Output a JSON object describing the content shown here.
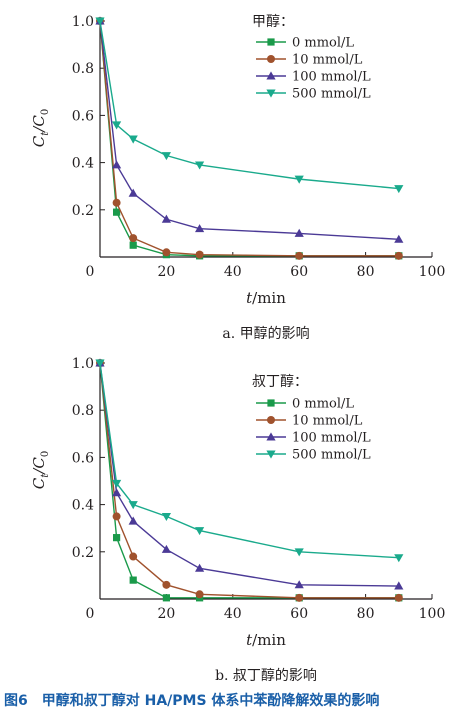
{
  "figure_caption": "图6　甲醇和叔丁醇对 HA/PMS 体系中苯酚降解效果的影响",
  "chart_data": [
    {
      "type": "line",
      "subcaption": "a. 甲醇的影响",
      "xlabel": "t/min",
      "ylabel": "Ct/C0",
      "xlim": [
        0,
        100
      ],
      "ylim": [
        0,
        1.0
      ],
      "xticks": [
        0,
        20,
        40,
        60,
        80,
        100
      ],
      "yticks": [
        0,
        0.2,
        0.4,
        0.6,
        0.8,
        1.0
      ],
      "ytick_labels": [
        "0",
        "0.2",
        "0.4",
        "0.6",
        "0.8",
        "1.0"
      ],
      "legend_title": "甲醇：",
      "legend_position": "top-right",
      "grid": false,
      "series": [
        {
          "name": "0 mmol/L",
          "marker": "square",
          "color": "#1a9a4a",
          "x": [
            0,
            5,
            10,
            20,
            30,
            60,
            90
          ],
          "y": [
            1.0,
            0.19,
            0.05,
            0.01,
            0.005,
            0.005,
            0.005
          ]
        },
        {
          "name": "10 mmol/L",
          "marker": "circle",
          "color": "#a0522d",
          "x": [
            0,
            5,
            10,
            20,
            30,
            60,
            90
          ],
          "y": [
            1.0,
            0.23,
            0.08,
            0.02,
            0.01,
            0.005,
            0.005
          ]
        },
        {
          "name": "100 mmol/L",
          "marker": "triangle-up",
          "color": "#4b3a96",
          "x": [
            0,
            5,
            10,
            20,
            30,
            60,
            90
          ],
          "y": [
            1.0,
            0.39,
            0.27,
            0.16,
            0.12,
            0.1,
            0.075
          ]
        },
        {
          "name": "500 mmol/L",
          "marker": "triangle-down",
          "color": "#1aaa8c",
          "x": [
            0,
            5,
            10,
            20,
            30,
            60,
            90
          ],
          "y": [
            1.0,
            0.56,
            0.5,
            0.43,
            0.39,
            0.33,
            0.29
          ]
        }
      ]
    },
    {
      "type": "line",
      "subcaption": "b. 叔丁醇的影响",
      "xlabel": "t/min",
      "ylabel": "Ct/C0",
      "xlim": [
        0,
        100
      ],
      "ylim": [
        0,
        1.0
      ],
      "xticks": [
        0,
        20,
        40,
        60,
        80,
        100
      ],
      "yticks": [
        0,
        0.2,
        0.4,
        0.6,
        0.8,
        1.0
      ],
      "ytick_labels": [
        "0",
        "0.2",
        "0.4",
        "0.6",
        "0.8",
        "1.0"
      ],
      "legend_title": "叔丁醇：",
      "legend_position": "top-right",
      "grid": false,
      "series": [
        {
          "name": "0 mmol/L",
          "marker": "square",
          "color": "#1a9a4a",
          "x": [
            0,
            5,
            10,
            20,
            30,
            60,
            90
          ],
          "y": [
            1.0,
            0.26,
            0.08,
            0.005,
            0.005,
            0.005,
            0.005
          ]
        },
        {
          "name": "10 mmol/L",
          "marker": "circle",
          "color": "#a0522d",
          "x": [
            0,
            5,
            10,
            20,
            30,
            60,
            90
          ],
          "y": [
            1.0,
            0.35,
            0.18,
            0.06,
            0.02,
            0.005,
            0.005
          ]
        },
        {
          "name": "100 mmol/L",
          "marker": "triangle-up",
          "color": "#4b3a96",
          "x": [
            0,
            5,
            10,
            20,
            30,
            60,
            90
          ],
          "y": [
            1.0,
            0.45,
            0.33,
            0.21,
            0.13,
            0.06,
            0.055
          ]
        },
        {
          "name": "500 mmol/L",
          "marker": "triangle-down",
          "color": "#1aaa8c",
          "x": [
            0,
            5,
            10,
            20,
            30,
            60,
            90
          ],
          "y": [
            1.0,
            0.49,
            0.4,
            0.35,
            0.29,
            0.2,
            0.175
          ]
        }
      ]
    }
  ]
}
